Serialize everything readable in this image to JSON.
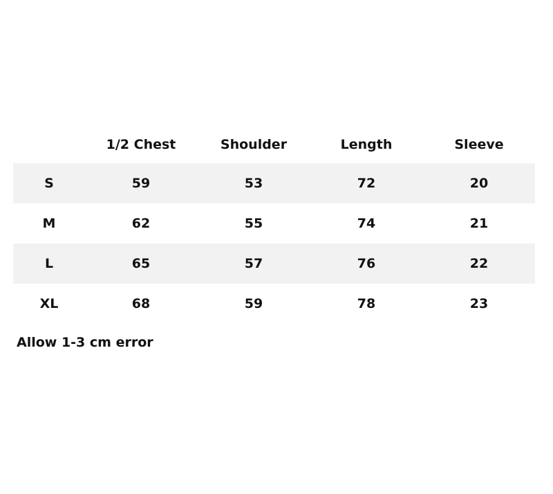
{
  "table": {
    "headers": [
      "",
      "1/2 Chest",
      "Shoulder",
      "Length",
      "Sleeve"
    ],
    "rows": [
      [
        "S",
        "59",
        "53",
        "72",
        "20"
      ],
      [
        "M",
        "62",
        "55",
        "74",
        "21"
      ],
      [
        "L",
        "65",
        "57",
        "76",
        "22"
      ],
      [
        "XL",
        "68",
        "59",
        "78",
        "23"
      ]
    ],
    "stripe_color": "#f2f2f2"
  },
  "note": "Allow 1-3 cm error"
}
